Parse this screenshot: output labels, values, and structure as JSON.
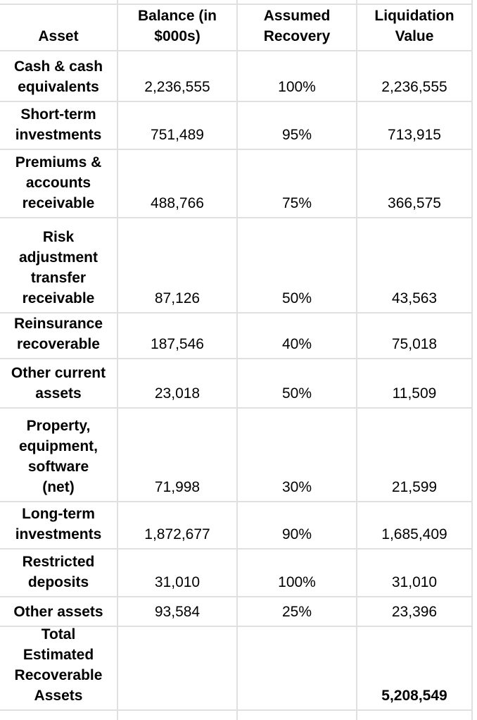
{
  "page": {
    "background_color": "#ffffff",
    "gridline_color": "#e0e0e0",
    "text_color": "#000000"
  },
  "table": {
    "headers": {
      "asset": "Asset",
      "balance": "Balance (in\n$000s)",
      "recovery": "Assumed\nRecovery",
      "liquidation": "Liquidation\nValue"
    },
    "rows": [
      {
        "asset": "Cash & cash\nequivalents",
        "balance": "2,236,555",
        "recovery": "100%",
        "liquidation": "2,236,555"
      },
      {
        "asset": "Short-term\ninvestments",
        "balance": "751,489",
        "recovery": "95%",
        "liquidation": "713,915"
      },
      {
        "asset": "Premiums &\naccounts\nreceivable",
        "balance": "488,766",
        "recovery": "75%",
        "liquidation": "366,575"
      },
      {
        "asset": "Risk\nadjustment\ntransfer\nreceivable",
        "balance": "87,126",
        "recovery": "50%",
        "liquidation": "43,563"
      },
      {
        "asset": "Reinsurance\nrecoverable",
        "balance": "187,546",
        "recovery": "40%",
        "liquidation": "75,018"
      },
      {
        "asset": "Other current\nassets",
        "balance": "23,018",
        "recovery": "50%",
        "liquidation": "11,509"
      },
      {
        "asset": "Property,\nequipment,\nsoftware\n(net)",
        "balance": "71,998",
        "recovery": "30%",
        "liquidation": "21,599"
      },
      {
        "asset": "Long-term\ninvestments",
        "balance": "1,872,677",
        "recovery": "90%",
        "liquidation": "1,685,409"
      },
      {
        "asset": "Restricted\ndeposits",
        "balance": "31,010",
        "recovery": "100%",
        "liquidation": "31,010"
      },
      {
        "asset": "Other assets",
        "balance": "93,584",
        "recovery": "25%",
        "liquidation": "23,396"
      },
      {
        "asset": "Total\nEstimated\nRecoverable\nAssets",
        "balance": "",
        "recovery": "",
        "liquidation": "5,208,549"
      }
    ]
  }
}
